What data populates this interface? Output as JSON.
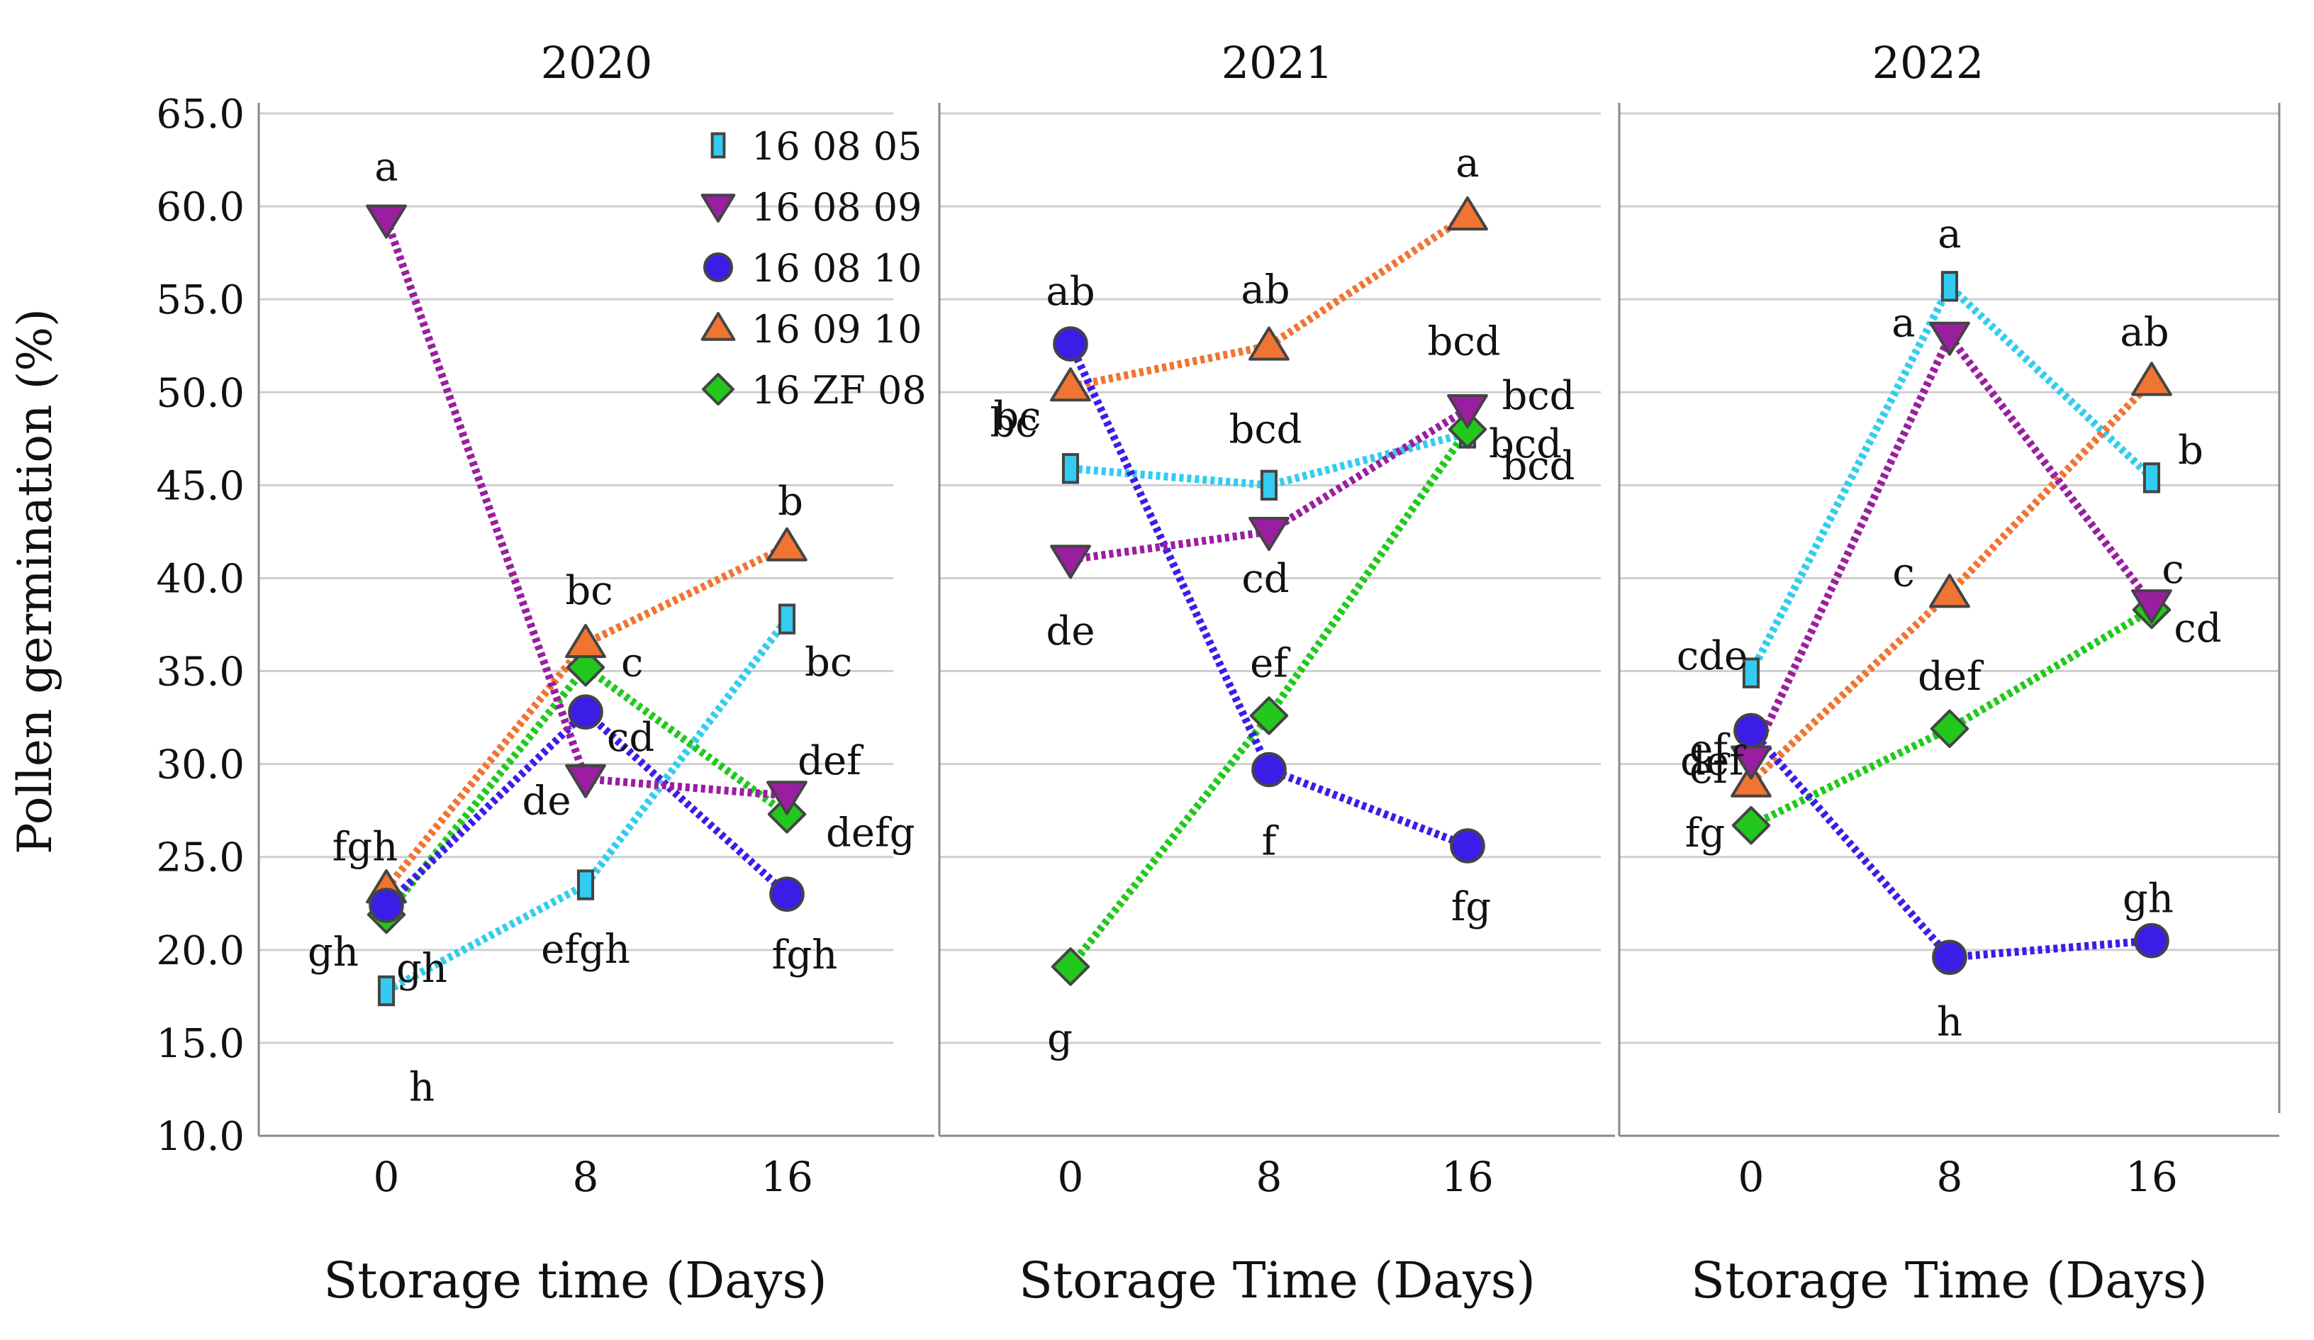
{
  "figure": {
    "ylabel": "Pollen germination (%)",
    "yticks": [
      "10.0",
      "15.0",
      "20.0",
      "25.0",
      "30.0",
      "35.0",
      "40.0",
      "45.0",
      "50.0",
      "55.0",
      "60.0",
      "65.0"
    ]
  },
  "legend": [
    {
      "label": "16 08 05",
      "color": "#33ccf0",
      "marker": "square-icon"
    },
    {
      "label": "16 08 09",
      "color": "#9a1ea0",
      "marker": "down-triangle-icon"
    },
    {
      "label": "16 08 10",
      "color": "#3a1ee8",
      "marker": "circle-icon"
    },
    {
      "label": "16 09 10",
      "color": "#f07432",
      "marker": "up-triangle-icon"
    },
    {
      "label": "16 ZF 08",
      "color": "#22c81c",
      "marker": "diamond-icon"
    }
  ],
  "chart_data": [
    {
      "type": "line",
      "title": "2020",
      "xlabel": "Storage time (Days)",
      "ylabel": "Pollen germination (%)",
      "categories": [
        "0",
        "8",
        "16"
      ],
      "ylim": [
        10,
        65
      ],
      "grid": true,
      "series": [
        {
          "name": "16 08 05",
          "values": [
            17.8,
            23.5,
            37.8
          ],
          "letters": [
            "h",
            "efgh",
            "bc"
          ]
        },
        {
          "name": "16 08 09",
          "values": [
            59.3,
            29.2,
            28.3
          ],
          "letters": [
            "a",
            "de",
            "def"
          ]
        },
        {
          "name": "16 08 10",
          "values": [
            22.4,
            32.8,
            23.0
          ],
          "letters": [
            "gh",
            "cd",
            "fgh"
          ]
        },
        {
          "name": "16 09 10",
          "values": [
            23.3,
            36.5,
            41.7
          ],
          "letters": [
            "fgh",
            "bc",
            "b"
          ]
        },
        {
          "name": "16 ZF 08",
          "values": [
            21.9,
            35.2,
            27.3
          ],
          "letters": [
            "gh",
            "c",
            "defg"
          ]
        }
      ]
    },
    {
      "type": "line",
      "title": "2021",
      "xlabel": "Storage Time (Days)",
      "ylabel": "",
      "categories": [
        "0",
        "8",
        "16"
      ],
      "ylim": [
        10,
        65
      ],
      "grid": true,
      "series": [
        {
          "name": "16 08 05",
          "values": [
            45.9,
            45.0,
            47.8
          ],
          "letters": [
            "bc",
            "bcd",
            "bcd"
          ]
        },
        {
          "name": "16 08 09",
          "values": [
            41.0,
            42.5,
            49.1
          ],
          "letters": [
            "de",
            "cd",
            "bcd"
          ]
        },
        {
          "name": "16 08 10",
          "values": [
            52.6,
            29.7,
            25.6
          ],
          "letters": [
            "ab",
            "f",
            "fg"
          ]
        },
        {
          "name": "16 09 10",
          "values": [
            50.3,
            52.5,
            59.5
          ],
          "letters": [
            "bc",
            "ab",
            "a"
          ]
        },
        {
          "name": "16 ZF 08",
          "values": [
            19.1,
            32.6,
            48.0
          ],
          "letters": [
            "g",
            "ef",
            "bcd"
          ]
        }
      ],
      "extra_labels": [
        "bcd"
      ]
    },
    {
      "type": "line",
      "title": "2022",
      "xlabel": "Storage Time (Days)",
      "ylabel": "",
      "categories": [
        "0",
        "8",
        "16"
      ],
      "ylim": [
        10,
        65
      ],
      "grid": true,
      "series": [
        {
          "name": "16 08 05",
          "values": [
            34.9,
            55.7,
            45.4
          ],
          "letters": [
            "cde",
            "a",
            "b"
          ]
        },
        {
          "name": "16 08 09",
          "values": [
            30.2,
            53.0,
            38.6
          ],
          "letters": [
            "def",
            "a",
            "c"
          ]
        },
        {
          "name": "16 08 10",
          "values": [
            31.8,
            19.6,
            20.5
          ],
          "letters": [
            "ef",
            "h",
            "gh"
          ]
        },
        {
          "name": "16 09 10",
          "values": [
            29.0,
            39.2,
            50.6
          ],
          "letters": [
            "ef",
            "c",
            "ab"
          ]
        },
        {
          "name": "16 ZF 08",
          "values": [
            26.7,
            31.9,
            38.3
          ],
          "letters": [
            "fg",
            "def",
            "cd"
          ]
        }
      ]
    }
  ]
}
